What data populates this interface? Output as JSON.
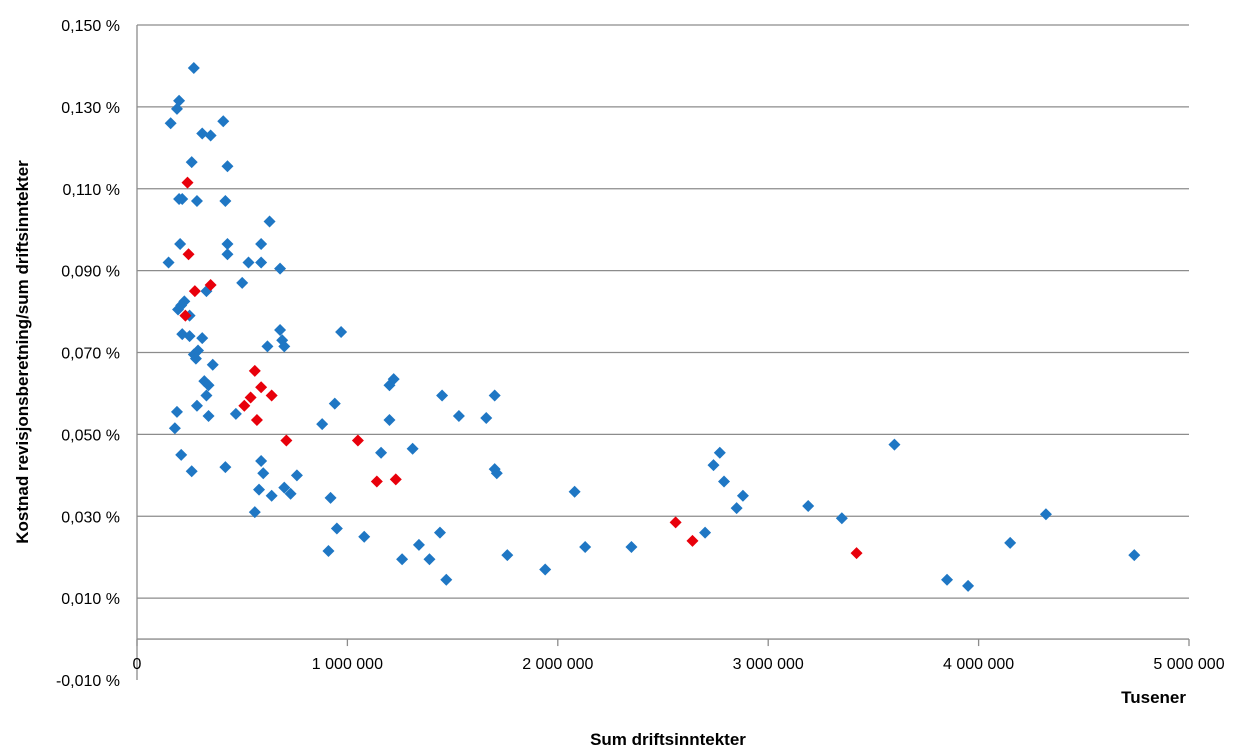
{
  "chart_data": {
    "type": "scatter",
    "title": "",
    "xlabel": "Sum driftsinntekter",
    "x_unit_label": "Tusener",
    "ylabel": "Kostnad revisjonsberetning/sum driftsinntekter",
    "xlim": [
      0,
      5000000
    ],
    "ylim": [
      -0.01,
      0.15
    ],
    "x_ticks": [
      0,
      1000000,
      2000000,
      3000000,
      4000000,
      5000000
    ],
    "x_tick_labels": [
      "0",
      "1 000 000",
      "2 000 000",
      "3 000 000",
      "4 000 000",
      "5 000 000"
    ],
    "y_ticks": [
      0.15,
      0.13,
      0.11,
      0.09,
      0.07,
      0.05,
      0.03,
      0.01,
      -0.01
    ],
    "y_tick_labels": [
      "0,150 %",
      "0,130 %",
      "0,110 %",
      "0,090 %",
      "0,070 %",
      "0,050 %",
      "0,030 %",
      "0,010 %",
      "-0,010 %"
    ],
    "grid": true,
    "legend": "none",
    "series": [
      {
        "color": "#1f77c4",
        "marker": "diamond",
        "points": [
          [
            270000,
            0.1395
          ],
          [
            200000,
            0.1315
          ],
          [
            190000,
            0.1295
          ],
          [
            160000,
            0.126
          ],
          [
            310000,
            0.1235
          ],
          [
            350000,
            0.123
          ],
          [
            410000,
            0.1265
          ],
          [
            260000,
            0.1165
          ],
          [
            430000,
            0.1155
          ],
          [
            200000,
            0.1075
          ],
          [
            215000,
            0.1075
          ],
          [
            285000,
            0.107
          ],
          [
            420000,
            0.107
          ],
          [
            630000,
            0.102
          ],
          [
            205000,
            0.0965
          ],
          [
            430000,
            0.0965
          ],
          [
            590000,
            0.0965
          ],
          [
            430000,
            0.094
          ],
          [
            150000,
            0.092
          ],
          [
            530000,
            0.092
          ],
          [
            590000,
            0.092
          ],
          [
            680000,
            0.0905
          ],
          [
            500000,
            0.087
          ],
          [
            330000,
            0.085
          ],
          [
            225000,
            0.0825
          ],
          [
            210000,
            0.0815
          ],
          [
            195000,
            0.0805
          ],
          [
            250000,
            0.079
          ],
          [
            215000,
            0.0745
          ],
          [
            250000,
            0.074
          ],
          [
            310000,
            0.0735
          ],
          [
            270000,
            0.0695
          ],
          [
            290000,
            0.0705
          ],
          [
            280000,
            0.0685
          ],
          [
            680000,
            0.0755
          ],
          [
            690000,
            0.073
          ],
          [
            700000,
            0.0715
          ],
          [
            620000,
            0.0715
          ],
          [
            970000,
            0.075
          ],
          [
            360000,
            0.067
          ],
          [
            320000,
            0.063
          ],
          [
            340000,
            0.062
          ],
          [
            330000,
            0.0595
          ],
          [
            285000,
            0.057
          ],
          [
            340000,
            0.0545
          ],
          [
            470000,
            0.055
          ],
          [
            190000,
            0.0555
          ],
          [
            180000,
            0.0515
          ],
          [
            210000,
            0.045
          ],
          [
            260000,
            0.041
          ],
          [
            420000,
            0.042
          ],
          [
            1450000,
            0.0595
          ],
          [
            1700000,
            0.0595
          ],
          [
            1530000,
            0.0545
          ],
          [
            1660000,
            0.054
          ],
          [
            940000,
            0.0575
          ],
          [
            880000,
            0.0525
          ],
          [
            1200000,
            0.062
          ],
          [
            1220000,
            0.0635
          ],
          [
            1200000,
            0.0535
          ],
          [
            1160000,
            0.0455
          ],
          [
            1310000,
            0.0465
          ],
          [
            1700000,
            0.0415
          ],
          [
            1710000,
            0.0405
          ],
          [
            590000,
            0.0435
          ],
          [
            600000,
            0.0405
          ],
          [
            580000,
            0.0365
          ],
          [
            640000,
            0.035
          ],
          [
            700000,
            0.037
          ],
          [
            730000,
            0.0355
          ],
          [
            760000,
            0.04
          ],
          [
            560000,
            0.031
          ],
          [
            920000,
            0.0345
          ],
          [
            950000,
            0.027
          ],
          [
            910000,
            0.0215
          ],
          [
            1080000,
            0.025
          ],
          [
            1260000,
            0.0195
          ],
          [
            1340000,
            0.023
          ],
          [
            1390000,
            0.0195
          ],
          [
            1440000,
            0.026
          ],
          [
            1470000,
            0.0145
          ],
          [
            1760000,
            0.0205
          ],
          [
            1940000,
            0.017
          ],
          [
            2080000,
            0.036
          ],
          [
            2130000,
            0.0225
          ],
          [
            2350000,
            0.0225
          ],
          [
            2700000,
            0.026
          ],
          [
            2740000,
            0.0425
          ],
          [
            2770000,
            0.0455
          ],
          [
            2790000,
            0.0385
          ],
          [
            2850000,
            0.032
          ],
          [
            2880000,
            0.035
          ],
          [
            3190000,
            0.0325
          ],
          [
            3350000,
            0.0295
          ],
          [
            3600000,
            0.0475
          ],
          [
            3850000,
            0.0145
          ],
          [
            3950000,
            0.013
          ],
          [
            4150000,
            0.0235
          ],
          [
            4320000,
            0.0305
          ],
          [
            4740000,
            0.0205
          ]
        ]
      },
      {
        "color": "#e8000b",
        "marker": "diamond",
        "points": [
          [
            240000,
            0.1115
          ],
          [
            245000,
            0.094
          ],
          [
            350000,
            0.0865
          ],
          [
            275000,
            0.085
          ],
          [
            230000,
            0.079
          ],
          [
            560000,
            0.0655
          ],
          [
            590000,
            0.0615
          ],
          [
            640000,
            0.0595
          ],
          [
            540000,
            0.059
          ],
          [
            510000,
            0.057
          ],
          [
            570000,
            0.0535
          ],
          [
            710000,
            0.0485
          ],
          [
            1050000,
            0.0485
          ],
          [
            1140000,
            0.0385
          ],
          [
            1230000,
            0.039
          ],
          [
            2560000,
            0.0285
          ],
          [
            2640000,
            0.024
          ],
          [
            3420000,
            0.021
          ]
        ]
      }
    ]
  }
}
